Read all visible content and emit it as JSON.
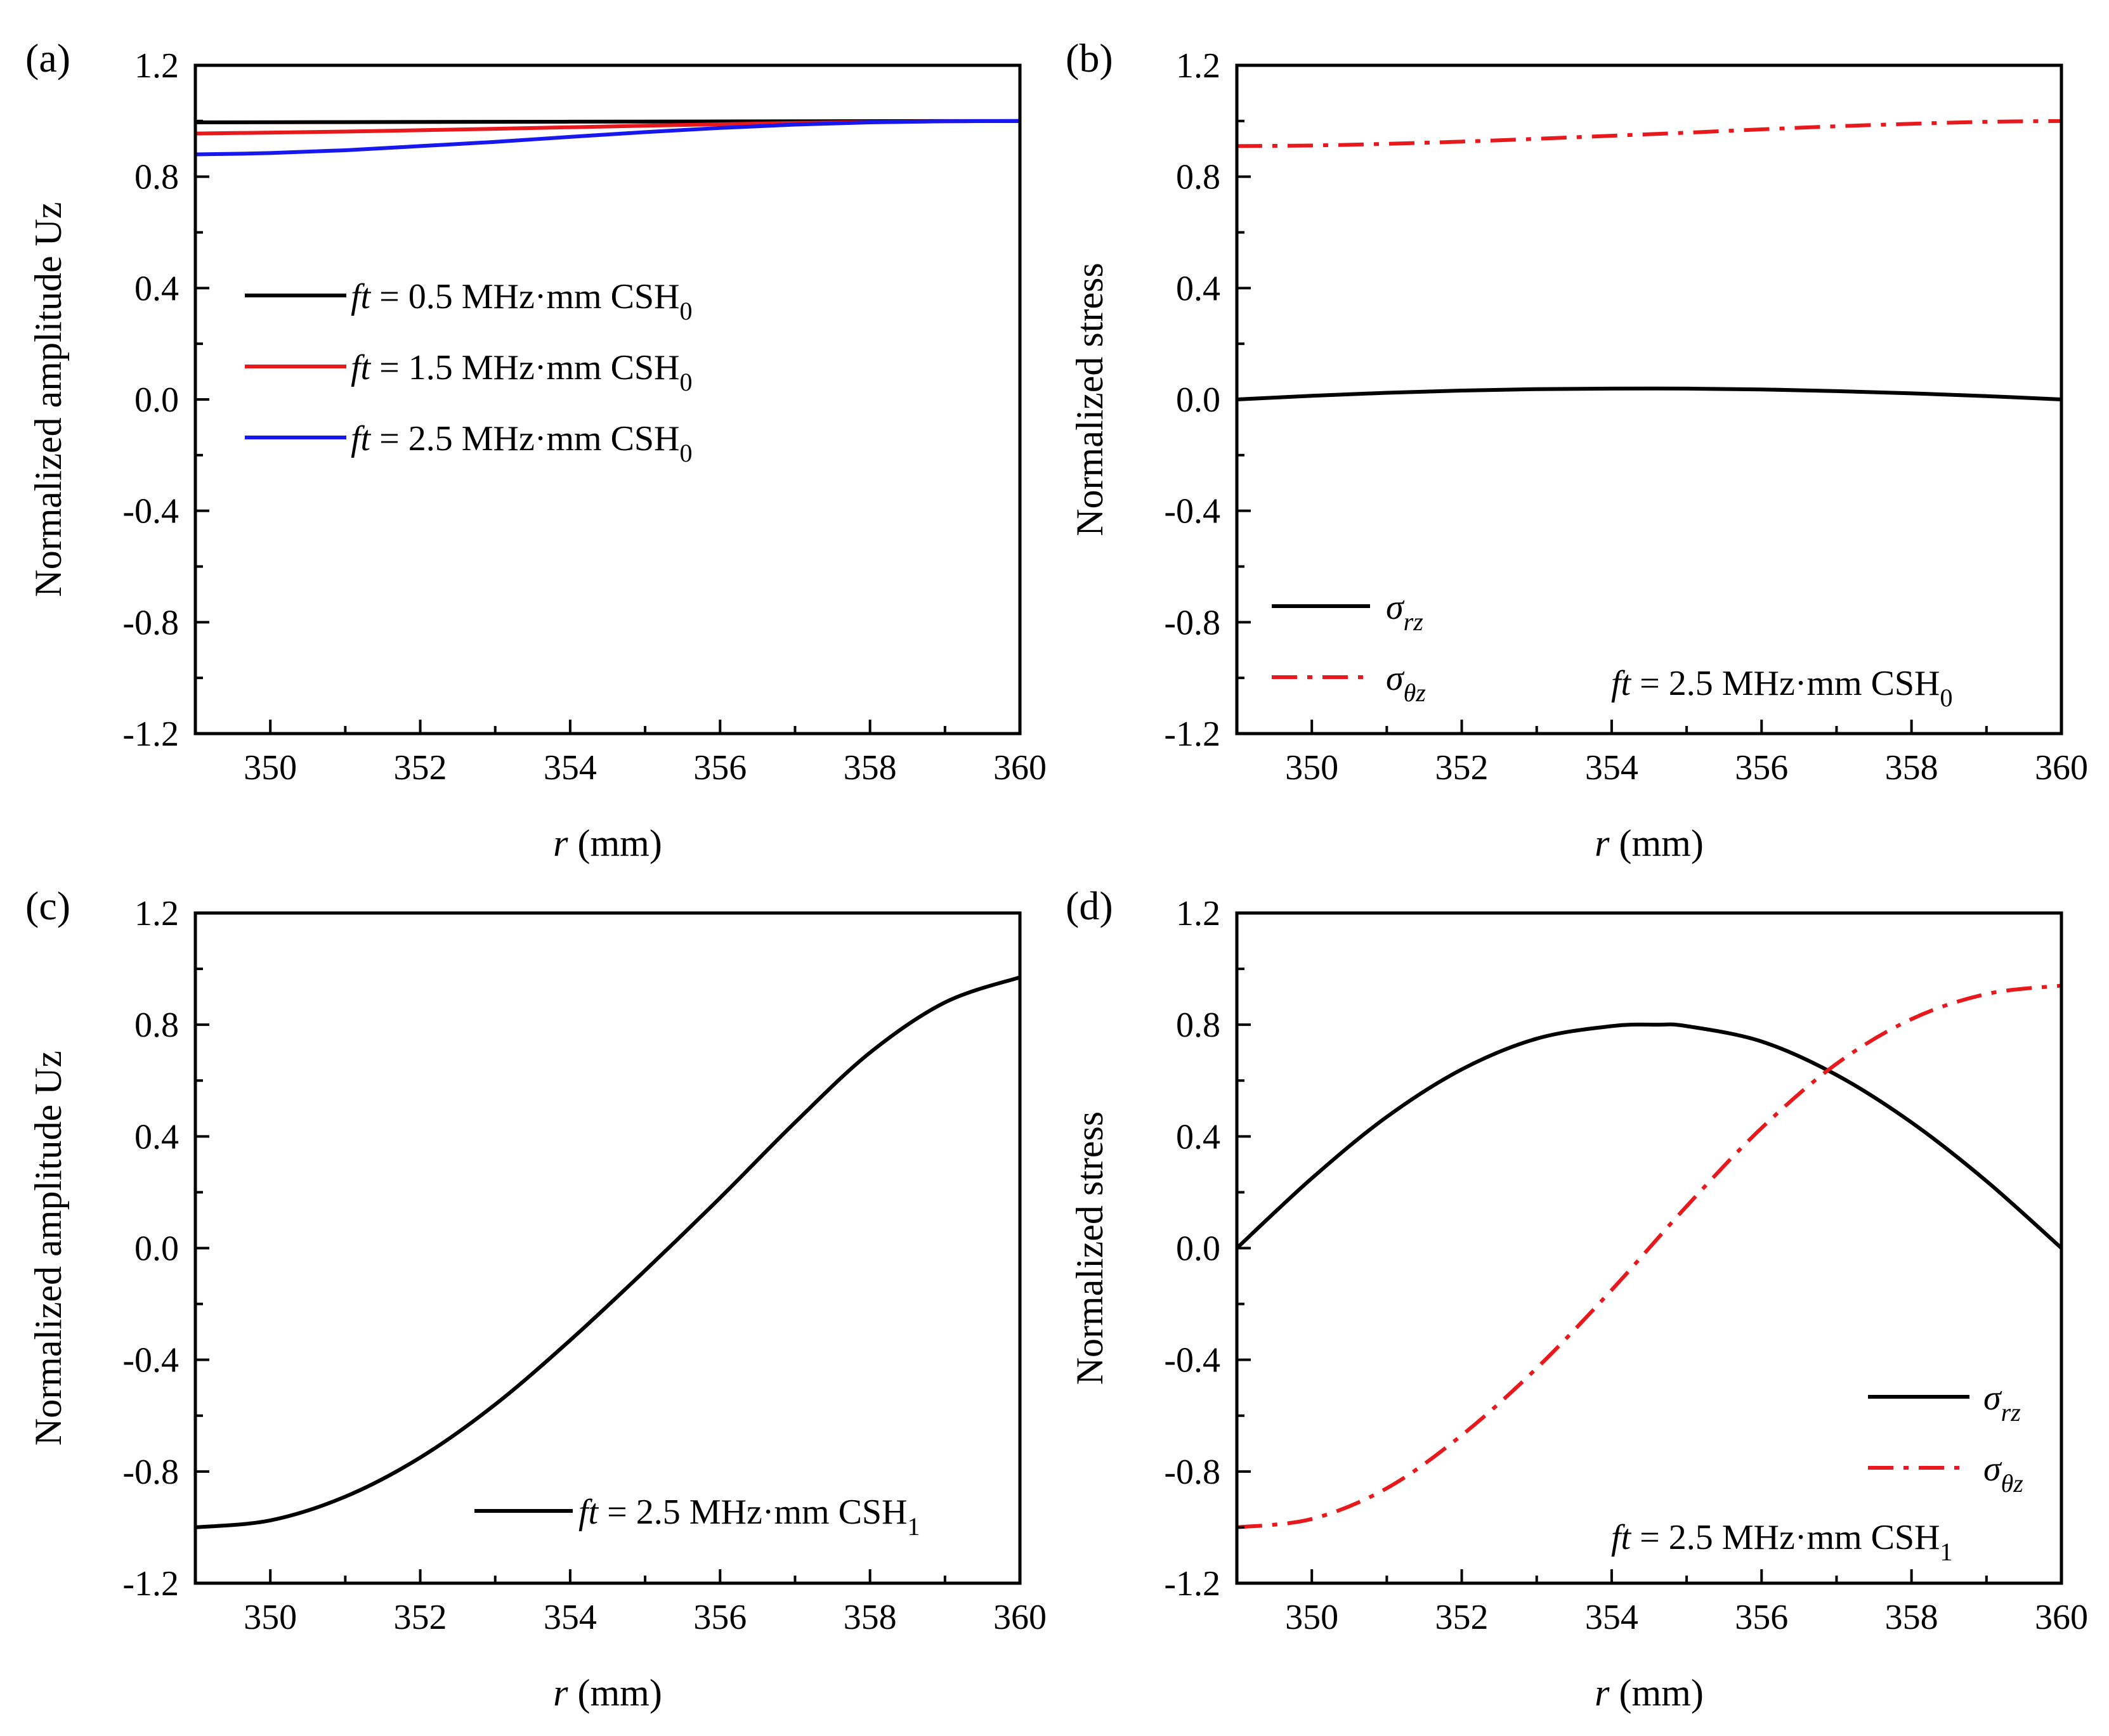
{
  "chart_data": [
    {
      "panel": "(a)",
      "type": "line",
      "xlabel": {
        "var": "r",
        "unit": "(mm)"
      },
      "ylabel": "Normalized amplitude Uz",
      "xlim": [
        349,
        360
      ],
      "ylim": [
        -1.2,
        1.2
      ],
      "xticks": [
        "350",
        "352",
        "354",
        "356",
        "358",
        "360"
      ],
      "xtick_values": [
        350,
        352,
        354,
        356,
        358,
        360
      ],
      "yticks": [
        "-1.2",
        "-0.8",
        "-0.4",
        "0.0",
        "0.4",
        "0.8",
        "1.2"
      ],
      "ytick_values": [
        -1.2,
        -0.8,
        -0.4,
        0.0,
        0.4,
        0.8,
        1.2
      ],
      "legend_position": "center-left",
      "series": [
        {
          "var": "ft",
          "text": " = 0.5 MHz·mm CSH",
          "sub": "0",
          "color": "#000000",
          "dash": "solid",
          "x": [
            349,
            351,
            353,
            355,
            357,
            359,
            360
          ],
          "y": [
            0.995,
            0.996,
            0.997,
            0.998,
            0.999,
            1.0,
            1.0
          ]
        },
        {
          "var": "ft",
          "text": " = 1.5 MHz·mm CSH",
          "sub": "0",
          "color": "#e8191c",
          "dash": "solid",
          "x": [
            349,
            351,
            353,
            355,
            357,
            359,
            360
          ],
          "y": [
            0.955,
            0.962,
            0.972,
            0.983,
            0.993,
            0.999,
            1.0
          ]
        },
        {
          "var": "ft",
          "text": " = 2.5 MHz·mm CSH",
          "sub": "0",
          "color": "#1717f0",
          "dash": "solid",
          "x": [
            349,
            350,
            351,
            352,
            353,
            354,
            355,
            356,
            357,
            358,
            359,
            360
          ],
          "y": [
            0.88,
            0.885,
            0.895,
            0.91,
            0.925,
            0.943,
            0.96,
            0.975,
            0.987,
            0.995,
            0.999,
            1.0
          ]
        }
      ]
    },
    {
      "panel": "(b)",
      "type": "line",
      "xlabel": {
        "var": "r",
        "unit": "(mm)"
      },
      "ylabel": "Normalized stress",
      "xlim": [
        349,
        360
      ],
      "ylim": [
        -1.2,
        1.2
      ],
      "xticks": [
        "350",
        "352",
        "354",
        "356",
        "358",
        "360"
      ],
      "xtick_values": [
        350,
        352,
        354,
        356,
        358,
        360
      ],
      "yticks": [
        "-1.2",
        "-0.8",
        "-0.4",
        "0.0",
        "0.4",
        "0.8",
        "1.2"
      ],
      "ytick_values": [
        -1.2,
        -0.8,
        -0.4,
        0.0,
        0.4,
        0.8,
        1.2
      ],
      "legend_position": "bottom-left",
      "annotation": {
        "var": "ft",
        "text": " = 2.5 MHz·mm CSH",
        "sub": "0",
        "position": "bottom-right"
      },
      "series": [
        {
          "symbol": "σ",
          "sub": "rz",
          "color": "#000000",
          "dash": "solid",
          "x": [
            349,
            350,
            351,
            352,
            353,
            354,
            355,
            356,
            357,
            358,
            359,
            360
          ],
          "y": [
            0.0,
            0.013,
            0.024,
            0.032,
            0.037,
            0.039,
            0.039,
            0.036,
            0.03,
            0.022,
            0.012,
            0.0
          ]
        },
        {
          "symbol": "σ",
          "sub": "θz",
          "color": "#e8191c",
          "dash": "dashdot",
          "x": [
            349,
            350,
            351,
            352,
            353,
            354,
            355,
            356,
            357,
            358,
            359,
            360
          ],
          "y": [
            0.91,
            0.912,
            0.918,
            0.926,
            0.936,
            0.947,
            0.958,
            0.97,
            0.981,
            0.99,
            0.997,
            1.0
          ]
        }
      ]
    },
    {
      "panel": "(c)",
      "type": "line",
      "xlabel": {
        "var": "r",
        "unit": "(mm)"
      },
      "ylabel": "Normalized amplitude Uz",
      "xlim": [
        349,
        360
      ],
      "ylim": [
        -1.2,
        1.2
      ],
      "xticks": [
        "350",
        "352",
        "354",
        "356",
        "358",
        "360"
      ],
      "xtick_values": [
        350,
        352,
        354,
        356,
        358,
        360
      ],
      "yticks": [
        "-1.2",
        "-0.8",
        "-0.4",
        "0.0",
        "0.4",
        "0.8",
        "1.2"
      ],
      "ytick_values": [
        -1.2,
        -0.8,
        -0.4,
        0.0,
        0.4,
        0.8,
        1.2
      ],
      "legend_position": "bottom-right",
      "series": [
        {
          "var": "ft",
          "text": " = 2.5 MHz·mm CSH",
          "sub": "1",
          "color": "#000000",
          "dash": "solid",
          "x": [
            349,
            350,
            351,
            352,
            353,
            354,
            355,
            356,
            357,
            358,
            359,
            360
          ],
          "y": [
            -1.0,
            -0.975,
            -0.89,
            -0.75,
            -0.56,
            -0.33,
            -0.08,
            0.18,
            0.45,
            0.7,
            0.88,
            0.97
          ]
        }
      ]
    },
    {
      "panel": "(d)",
      "type": "line",
      "xlabel": {
        "var": "r",
        "unit": "(mm)"
      },
      "ylabel": "Normalized stress",
      "xlim": [
        349,
        360
      ],
      "ylim": [
        -1.2,
        1.2
      ],
      "xticks": [
        "350",
        "352",
        "354",
        "356",
        "358",
        "360"
      ],
      "xtick_values": [
        350,
        352,
        354,
        356,
        358,
        360
      ],
      "yticks": [
        "-1.2",
        "-0.8",
        "-0.4",
        "0.0",
        "0.4",
        "0.8",
        "1.2"
      ],
      "ytick_values": [
        -1.2,
        -0.8,
        -0.4,
        0.0,
        0.4,
        0.8,
        1.2
      ],
      "legend_position": "bottom-right",
      "annotation": {
        "var": "ft",
        "text": " = 2.5 MHz·mm CSH",
        "sub": "1",
        "position": "bottom-right"
      },
      "series": [
        {
          "symbol": "σ",
          "sub": "rz",
          "color": "#000000",
          "dash": "solid",
          "x": [
            349,
            350,
            351,
            352,
            353,
            354,
            354.6,
            355,
            356,
            357,
            358,
            359,
            360
          ],
          "y": [
            0.0,
            0.25,
            0.47,
            0.64,
            0.75,
            0.795,
            0.8,
            0.795,
            0.74,
            0.62,
            0.45,
            0.24,
            0.0
          ]
        },
        {
          "symbol": "σ",
          "sub": "θz",
          "color": "#e8191c",
          "dash": "dashdot",
          "x": [
            349,
            350,
            351,
            352,
            353,
            354,
            355,
            356,
            357,
            358,
            359,
            360
          ],
          "y": [
            -1.0,
            -0.97,
            -0.86,
            -0.67,
            -0.43,
            -0.15,
            0.15,
            0.43,
            0.66,
            0.82,
            0.91,
            0.94
          ]
        }
      ]
    }
  ]
}
